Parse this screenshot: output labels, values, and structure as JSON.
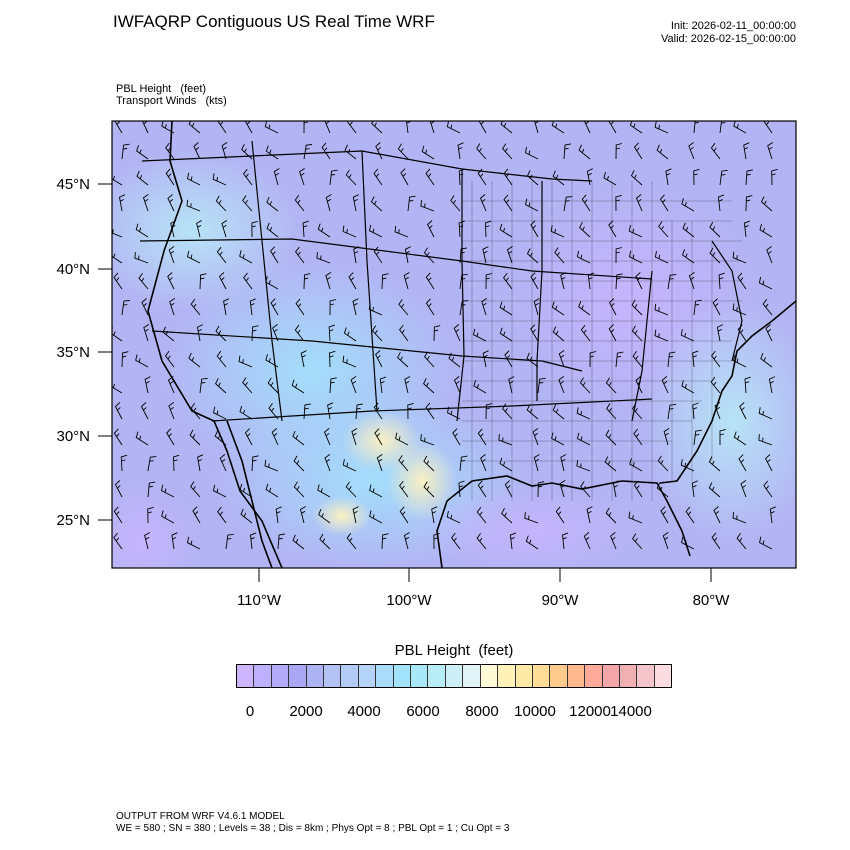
{
  "header": {
    "title": "IWFAQRP Contiguous US Real Time WRF",
    "init": "Init: 2026-02-11_00:00:00",
    "valid": "Valid: 2026-02-15_00:00:00"
  },
  "fields": {
    "primary": "PBL Height   (feet)",
    "overlay": "Transport Winds   (kts)"
  },
  "map": {
    "projection": "Lambert conformal",
    "lat_labels": [
      "45°N",
      "40°N",
      "35°N",
      "30°N",
      "25°N"
    ],
    "lon_labels": [
      "110°W",
      "100°W",
      "90°W",
      "80°W"
    ],
    "overlay_layers": [
      "state-boundaries",
      "county-boundaries",
      "coastlines",
      "wind-barbs"
    ],
    "background_color": "#b9b6f3"
  },
  "colorbar": {
    "title": "PBL Height  (feet)",
    "labels": [
      "0",
      "2000",
      "4000",
      "6000",
      "8000",
      "10000",
      "12000",
      "14000"
    ],
    "colors": [
      "#cdb6ff",
      "#bfb0ff",
      "#b3aaf9",
      "#a9a6f3",
      "#aeb4f3",
      "#b3c1f5",
      "#b5cbf7",
      "#b3d3f8",
      "#aadcfb",
      "#a2e3fc",
      "#a8e8f8",
      "#b8ecf7",
      "#cdf0f7",
      "#e0f4f8",
      "#fff9d6",
      "#fff2b8",
      "#ffe9a6",
      "#ffdd96",
      "#ffcc8d",
      "#ffb98d",
      "#ffa99a",
      "#f4a6aa",
      "#efb0b4",
      "#f4c6cc",
      "#fbdce0"
    ]
  },
  "footer": {
    "model": "OUTPUT FROM WRF V4.6.1 MODEL",
    "params": "WE = 580 ; SN = 380 ; Levels = 38 ; Dis = 8km ; Phys Opt = 8 ; PBL Opt = 1 ; Cu Opt = 3"
  }
}
